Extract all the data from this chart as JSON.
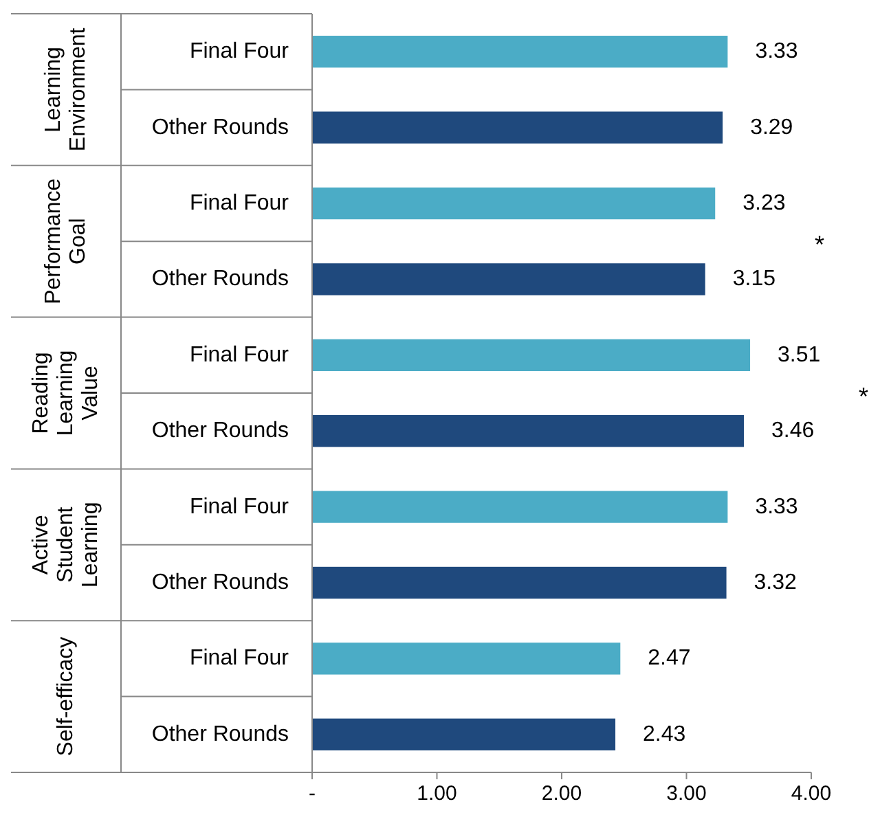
{
  "chart_data": {
    "type": "bar",
    "orientation": "horizontal",
    "categories": [
      "Final Four",
      "Other Rounds",
      "Final Four",
      "Other Rounds",
      "Final Four",
      "Other Rounds",
      "Final Four",
      "Other Rounds",
      "Final Four",
      "Other Rounds"
    ],
    "values": [
      3.33,
      3.29,
      3.23,
      3.15,
      3.51,
      3.46,
      3.33,
      3.32,
      2.47,
      2.43
    ],
    "colors": [
      "#4bacc6",
      "#1f497d",
      "#4bacc6",
      "#1f497d",
      "#4bacc6",
      "#1f497d",
      "#4bacc6",
      "#1f497d",
      "#4bacc6",
      "#1f497d"
    ],
    "xlim": [
      0,
      4
    ],
    "xticks": [
      {
        "value": 0,
        "label": "-"
      },
      {
        "value": 1,
        "label": "1.00"
      },
      {
        "value": 2,
        "label": "2.00"
      },
      {
        "value": 3,
        "label": "3.00"
      },
      {
        "value": 4,
        "label": "4.00"
      }
    ],
    "data_labels": true,
    "annotations": [
      "Learning Environment",
      "Performance Goal",
      "Reading Learning Value",
      "Active Student Learning",
      "Self-efficacy",
      "*",
      "*"
    ]
  }
}
